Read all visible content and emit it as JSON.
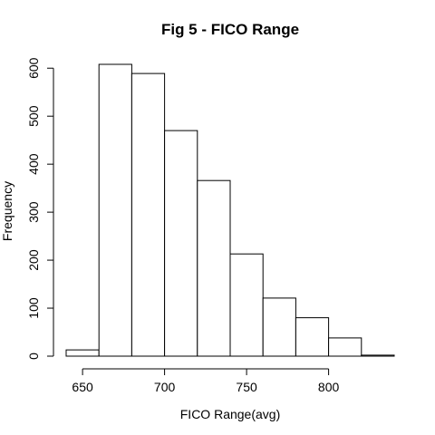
{
  "chart_data": {
    "type": "bar",
    "subtype": "histogram",
    "title": "Fig 5 - FICO Range",
    "xlabel": "FICO Range(avg)",
    "ylabel": "Frequency",
    "bins": [
      {
        "start": 640,
        "end": 660,
        "count": 13
      },
      {
        "start": 660,
        "end": 680,
        "count": 608
      },
      {
        "start": 680,
        "end": 700,
        "count": 589
      },
      {
        "start": 700,
        "end": 720,
        "count": 470
      },
      {
        "start": 720,
        "end": 740,
        "count": 366
      },
      {
        "start": 740,
        "end": 760,
        "count": 213
      },
      {
        "start": 760,
        "end": 780,
        "count": 121
      },
      {
        "start": 780,
        "end": 800,
        "count": 80
      },
      {
        "start": 800,
        "end": 820,
        "count": 38
      },
      {
        "start": 820,
        "end": 840,
        "count": 2
      }
    ],
    "xticks": [
      650,
      700,
      750,
      800
    ],
    "yticks": [
      0,
      100,
      200,
      300,
      400,
      500,
      600
    ],
    "xlim": [
      640,
      840
    ],
    "ylim": [
      0,
      608
    ],
    "grid": false,
    "bar_fill": "#ffffff",
    "bar_stroke": "#000000"
  }
}
